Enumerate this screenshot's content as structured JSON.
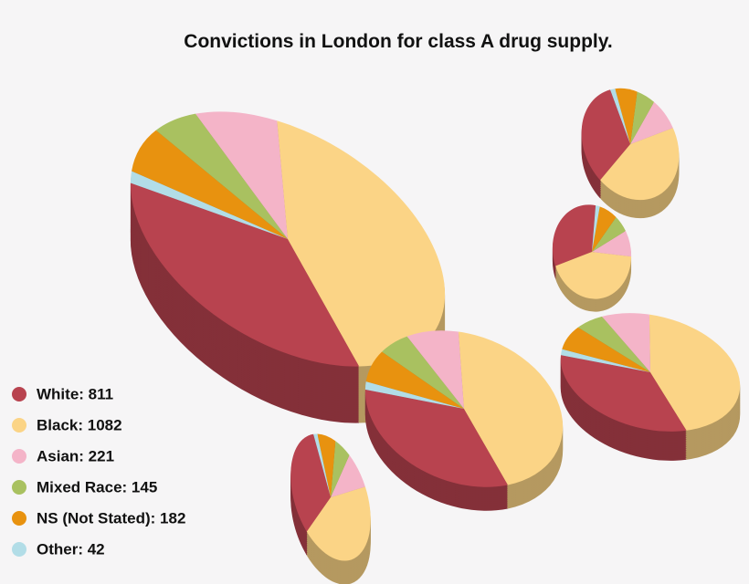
{
  "chart_data": {
    "type": "pie",
    "title": "Convictions in London for class A drug supply.",
    "categories": [
      "White",
      "Black",
      "Asian",
      "Mixed Race",
      "NS (Not Stated)",
      "Other"
    ],
    "values": [
      811,
      1082,
      221,
      145,
      182,
      42
    ],
    "value_labels": [
      "White: 811",
      "Black: 1082",
      "Asian: 221",
      "Mixed Race: 145",
      "NS (Not Stated): 182",
      "Other: 42"
    ],
    "colors": [
      "#b8434f",
      "#fbd486",
      "#f4b4c8",
      "#a9c160",
      "#e8920f",
      "#b2dde7"
    ],
    "three_d": true
  }
}
